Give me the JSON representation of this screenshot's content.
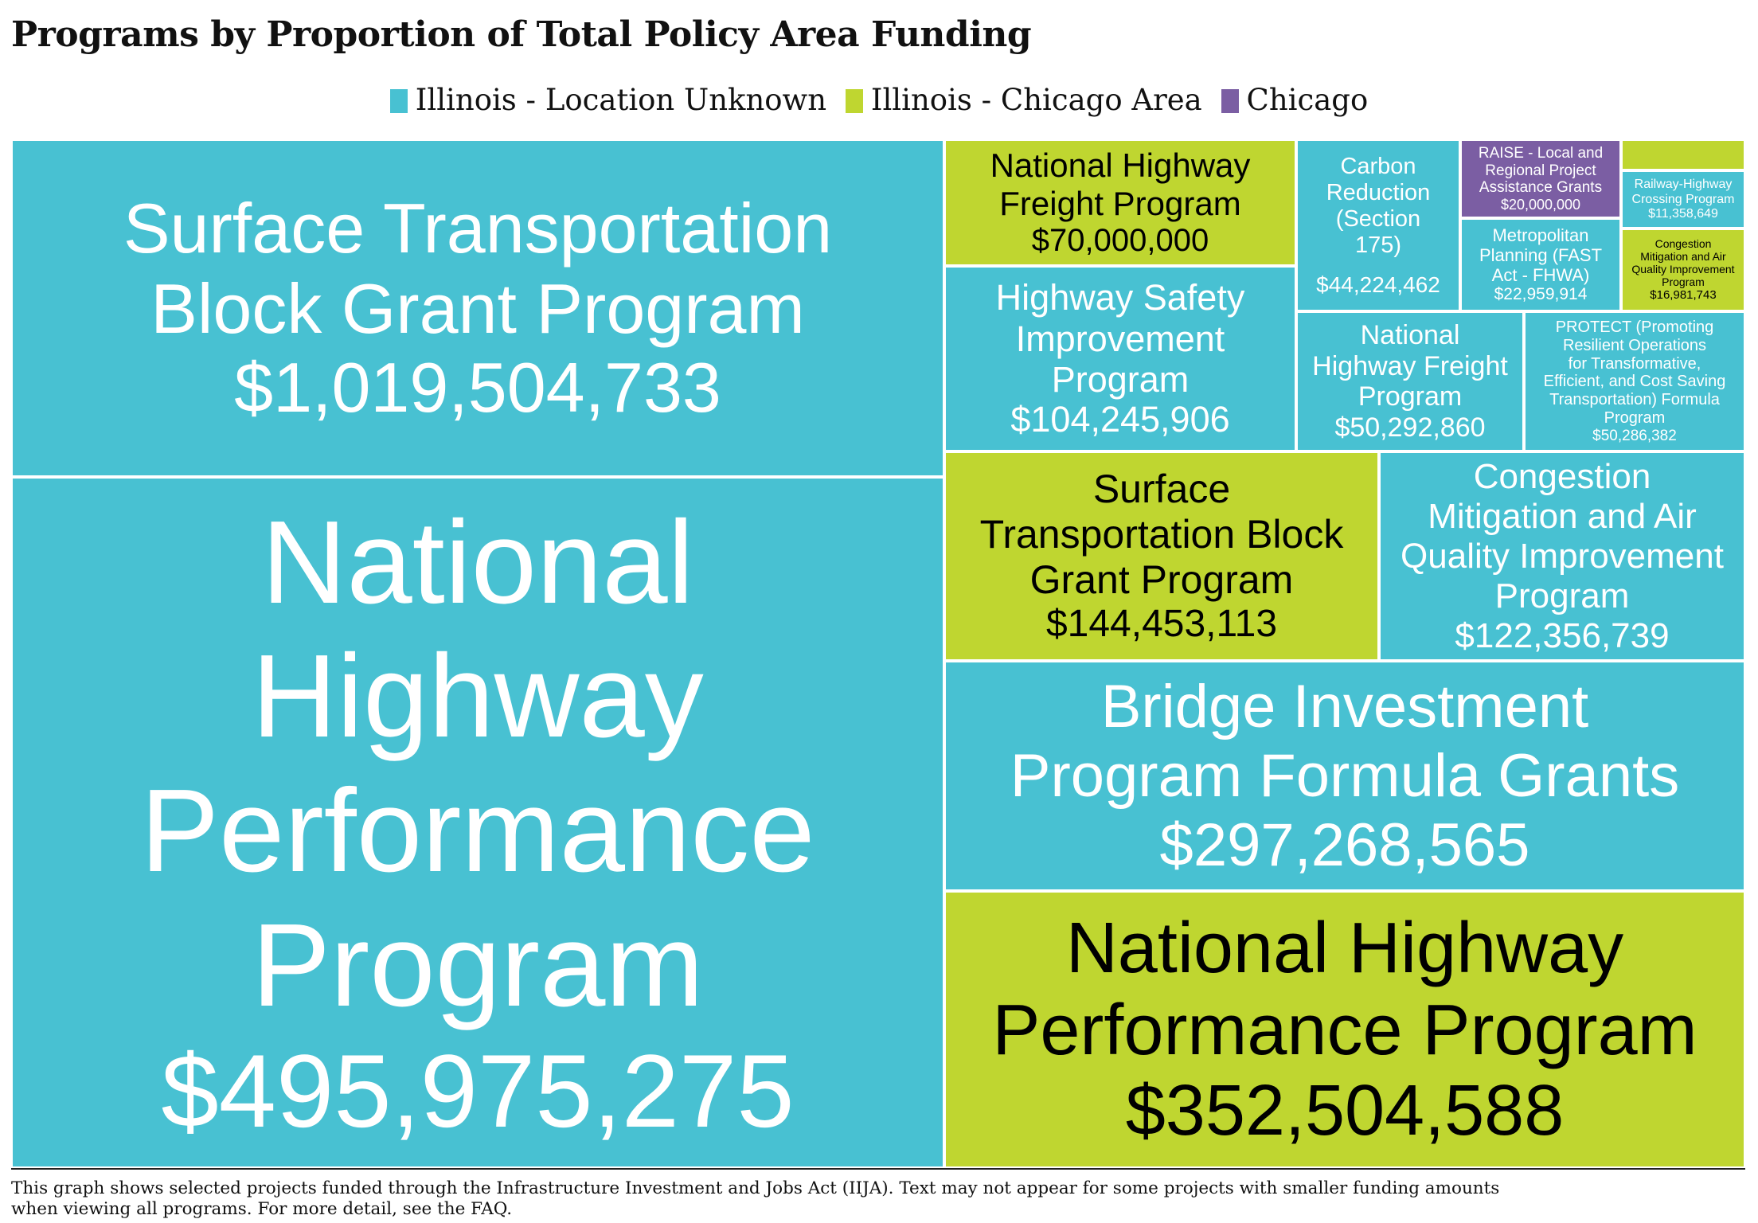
{
  "chart_data": {
    "type": "treemap",
    "title": "Programs by Proportion of Total Policy Area Funding",
    "legend": [
      {
        "label": "Illinois - Location Unknown",
        "color": "#48C1D2"
      },
      {
        "label": "Illinois - Chicago Area",
        "color": "#BFD630"
      },
      {
        "label": "Chicago",
        "color": "#7B5EA3"
      }
    ],
    "tiles": [
      {
        "label": "National Highway Performance Program",
        "value": 1019504733,
        "value_label": "$1,019,504,733",
        "group": "Illinois - Location Unknown"
      },
      {
        "label": "Surface Transportation Block Grant Program",
        "value": 495975275,
        "value_label": "$495,975,275",
        "group": "Illinois - Location Unknown"
      },
      {
        "label": "National Highway Performance Program",
        "value": 352504588,
        "value_label": "$352,504,588",
        "group": "Illinois - Chicago Area"
      },
      {
        "label": "Bridge Investment Program Formula Grants",
        "value": 297268565,
        "value_label": "$297,268,565",
        "group": "Illinois - Location Unknown"
      },
      {
        "label": "Surface Transportation Block Grant Program",
        "value": 144453113,
        "value_label": "$144,453,113",
        "group": "Illinois - Chicago Area"
      },
      {
        "label": "Congestion Mitigation and Air Quality Improvement Program",
        "value": 122356739,
        "value_label": "$122,356,739",
        "group": "Illinois - Location Unknown"
      },
      {
        "label": "Highway Safety Improvement Program",
        "value": 104245906,
        "value_label": "$104,245,906",
        "group": "Illinois - Location Unknown"
      },
      {
        "label": "National Highway Freight Program",
        "value": 70000000,
        "value_label": "$70,000,000",
        "group": "Illinois - Chicago Area"
      },
      {
        "label": "National Highway Freight Program",
        "value": 50292860,
        "value_label": "$50,292,860",
        "group": "Illinois - Location Unknown"
      },
      {
        "label": "PROTECT (Promoting Resilient Operations for Transformative, Efficient, and Cost Saving Transportation) Formula Program",
        "value": 50286382,
        "value_label": "$50,286,382",
        "group": "Illinois - Location Unknown"
      },
      {
        "label": "Carbon Reduction (Section 175)",
        "value": 44224462,
        "value_label": "$44,224,462",
        "group": "Illinois - Location Unknown"
      },
      {
        "label": "Metropolitan Planning (FAST Act - FHWA)",
        "value": 22959914,
        "value_label": "$22,959,914",
        "group": "Illinois - Location Unknown"
      },
      {
        "label": "RAISE - Local and Regional Project Assistance Grants",
        "value": 20000000,
        "value_label": "$20,000,000",
        "group": "Chicago"
      },
      {
        "label": "Congestion Mitigation and Air Quality Improvement Program",
        "value": 16981743,
        "value_label": "$16,981,743",
        "group": "Illinois - Chicago Area"
      },
      {
        "label": "Railway-Highway Crossing Program",
        "value": 11358649,
        "value_label": "$11,358,649",
        "group": "Illinois - Location Unknown"
      },
      {
        "label": "",
        "value": null,
        "value_label": "",
        "group": "Illinois - Chicago Area"
      }
    ]
  },
  "footnote": {
    "line1": "This graph shows selected projects funded through the Infrastructure Investment and Jobs Act (IIJA). Text may not appear for some projects with smaller funding amounts",
    "line2": " when viewing all programs. For more detail, see the FAQ."
  }
}
